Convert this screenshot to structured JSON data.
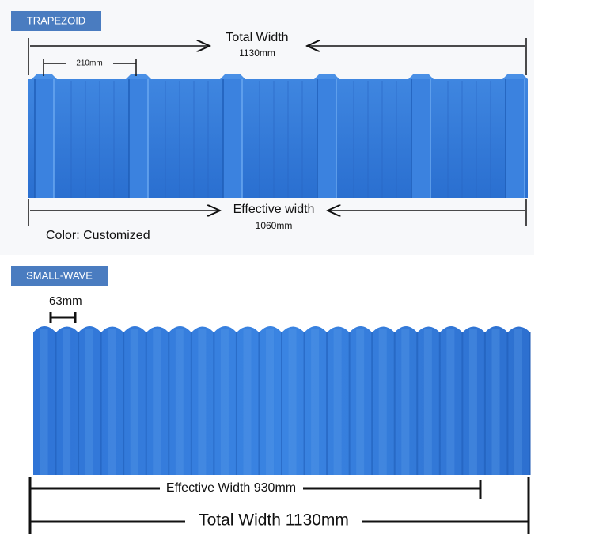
{
  "sections": [
    {
      "label": "TRAPEZOID",
      "total_width": {
        "title": "Total Width",
        "value": "1130mm"
      },
      "rib_spacing": "210mm",
      "effective_width": {
        "title": "Effective width",
        "value": "1060mm"
      },
      "color_note": "Color: Customized"
    },
    {
      "label": "SMALL-WAVE",
      "wave_pitch": "63mm",
      "effective_width": "Effective Width 930mm",
      "total_width": "Total Width 1130mm"
    }
  ]
}
